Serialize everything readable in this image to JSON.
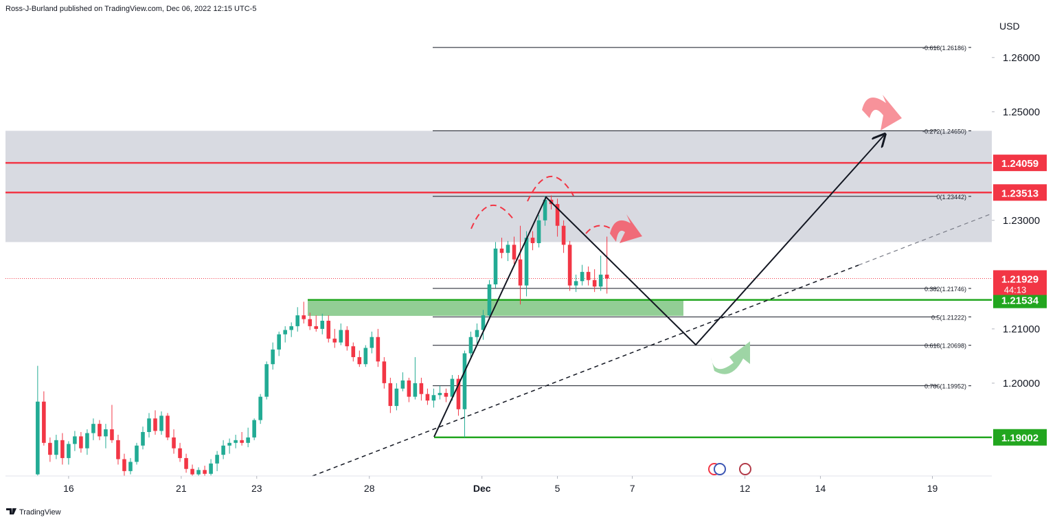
{
  "chart_data": {
    "type": "candlestick",
    "header": "Ross-J-Burland published on TradingView.com, Dec 06, 2022 12:15 UTC-5",
    "footer": "TradingView",
    "currency": "USD",
    "up_color": "#22ab94",
    "down_color": "#f23645",
    "open": [
      1.1832,
      1.1966,
      1.189,
      1.1868,
      1.1895,
      1.1862,
      1.1888,
      1.1902,
      1.188,
      1.1908,
      1.1925,
      1.1902,
      1.1915,
      1.1895,
      1.186,
      1.1838,
      1.1855,
      1.1885,
      1.191,
      1.1935,
      1.1912,
      1.194,
      1.19,
      1.188,
      1.1862,
      1.1842,
      1.1832,
      1.184,
      1.1833,
      1.1852,
      1.1868,
      1.1885,
      1.189,
      1.1895,
      1.189,
      1.19,
      1.1932,
      1.1975,
      1.2035,
      1.2062,
      1.209,
      1.2098,
      1.2105,
      1.2125,
      1.2118,
      1.2105,
      1.21,
      1.2115,
      1.2082,
      1.2075,
      1.2098,
      1.2068,
      1.2048,
      1.2035,
      1.2065,
      1.2085,
      1.204,
      1.2,
      1.1958,
      1.199,
      1.2005,
      1.1975,
      1.2,
      1.198,
      1.1968,
      1.1978,
      1.1982,
      1.1975,
      1.2008,
      1.1952,
      1.2055,
      1.2085,
      1.2098,
      1.2125,
      1.2182,
      1.2248,
      1.224,
      1.2255,
      1.2228,
      1.218,
      1.2268,
      1.2258,
      1.23,
      1.2338,
      1.233,
      1.229,
      1.2255,
      1.218,
      1.2188,
      1.2205,
      1.219,
      1.2178,
      1.22
    ],
    "high": [
      1.2032,
      1.1985,
      1.19,
      1.1905,
      1.1908,
      1.1893,
      1.1912,
      1.191,
      1.1915,
      1.1935,
      1.1932,
      1.1925,
      1.196,
      1.1905,
      1.187,
      1.1862,
      1.189,
      1.192,
      1.1945,
      1.195,
      1.1948,
      1.1945,
      1.1915,
      1.189,
      1.187,
      1.185,
      1.1845,
      1.1848,
      1.186,
      1.1875,
      1.1895,
      1.1898,
      1.1905,
      1.191,
      1.1918,
      1.1935,
      1.198,
      1.204,
      1.2075,
      1.2095,
      1.2105,
      1.2112,
      1.214,
      1.215,
      1.213,
      1.2125,
      1.2128,
      1.2125,
      1.21,
      1.211,
      1.2105,
      1.2075,
      1.206,
      1.207,
      1.2095,
      1.21,
      1.2048,
      1.201,
      1.2,
      1.202,
      1.201,
      1.2048,
      1.201,
      1.199,
      1.199,
      1.1995,
      1.199,
      1.2015,
      1.2015,
      1.206,
      1.2095,
      1.211,
      1.2135,
      1.219,
      1.226,
      1.2268,
      1.2262,
      1.227,
      1.229,
      1.228,
      1.228,
      1.231,
      1.2345,
      1.2346,
      1.234,
      1.23,
      1.2262,
      1.22,
      1.2218,
      1.2215,
      1.221,
      1.2235,
      1.227
    ],
    "low": [
      1.183,
      1.1885,
      1.1855,
      1.186,
      1.185,
      1.185,
      1.1875,
      1.1872,
      1.1868,
      1.1895,
      1.1895,
      1.188,
      1.189,
      1.185,
      1.1829,
      1.1832,
      1.185,
      1.1878,
      1.19,
      1.1905,
      1.1905,
      1.1895,
      1.187,
      1.1855,
      1.1835,
      1.1829,
      1.1829,
      1.1829,
      1.183,
      1.1838,
      1.186,
      1.187,
      1.188,
      1.1885,
      1.1882,
      1.1895,
      1.1925,
      1.197,
      1.2025,
      1.205,
      1.2075,
      1.2085,
      1.2095,
      1.211,
      1.2098,
      1.2095,
      1.209,
      1.2075,
      1.2065,
      1.207,
      1.206,
      1.204,
      1.203,
      1.203,
      1.2055,
      1.203,
      1.199,
      1.1945,
      1.195,
      1.1985,
      1.1965,
      1.197,
      1.1968,
      1.196,
      1.1955,
      1.197,
      1.1965,
      1.1968,
      1.194,
      1.19,
      1.2045,
      1.207,
      1.208,
      1.2118,
      1.2175,
      1.223,
      1.2225,
      1.222,
      1.2145,
      1.216,
      1.2245,
      1.225,
      1.229,
      1.232,
      1.227,
      1.224,
      1.217,
      1.2168,
      1.218,
      1.218,
      1.2168,
      1.217,
      1.2165
    ],
    "close": [
      1.1966,
      1.189,
      1.1868,
      1.1895,
      1.1862,
      1.1888,
      1.1902,
      1.188,
      1.1908,
      1.1925,
      1.1902,
      1.1915,
      1.1895,
      1.186,
      1.1838,
      1.1855,
      1.1885,
      1.191,
      1.1935,
      1.1912,
      1.194,
      1.19,
      1.188,
      1.1862,
      1.1842,
      1.1832,
      1.184,
      1.1833,
      1.1852,
      1.1868,
      1.1885,
      1.189,
      1.1895,
      1.189,
      1.19,
      1.1932,
      1.1975,
      1.2035,
      1.2062,
      1.209,
      1.2098,
      1.2105,
      1.2125,
      1.2118,
      1.2105,
      1.21,
      1.2115,
      1.2082,
      1.2075,
      1.2098,
      1.2068,
      1.2048,
      1.2035,
      1.2065,
      1.2085,
      1.204,
      1.2,
      1.1958,
      1.199,
      1.2005,
      1.1975,
      1.2,
      1.198,
      1.1968,
      1.1978,
      1.1982,
      1.1975,
      1.2008,
      1.1952,
      1.2055,
      1.2085,
      1.2098,
      1.2125,
      1.2182,
      1.2248,
      1.224,
      1.2255,
      1.2228,
      1.218,
      1.2268,
      1.2258,
      1.23,
      1.2338,
      1.233,
      1.229,
      1.2255,
      1.218,
      1.2188,
      1.2205,
      1.219,
      1.2178,
      1.22,
      1.21929
    ],
    "xlim": [
      -5.2,
      154.2
    ],
    "xticks": [
      {
        "value": 5.0,
        "label": "16"
      },
      {
        "value": 23.2,
        "label": "21"
      },
      {
        "value": 35.4,
        "label": "23"
      },
      {
        "value": 53.6,
        "label": "28"
      },
      {
        "value": 71.8,
        "label": "Dec"
      },
      {
        "value": 84.0,
        "label": "5"
      },
      {
        "value": 96.1,
        "label": "7"
      },
      {
        "value": 114.3,
        "label": "12"
      },
      {
        "value": 126.5,
        "label": "14"
      },
      {
        "value": 144.6,
        "label": "19"
      }
    ],
    "ylim": [
      1.1829,
      1.2706
    ],
    "yticks": [
      {
        "value": 1.26,
        "label": "1.26000"
      },
      {
        "value": 1.25,
        "label": "1.25000"
      },
      {
        "value": 1.23,
        "label": "1.23000"
      },
      {
        "value": 1.21,
        "label": "1.21000"
      },
      {
        "value": 1.2,
        "label": "1.20000"
      }
    ],
    "zones": [
      {
        "from": 1.226,
        "to": 1.2465,
        "color": "#d1d4dc"
      },
      {
        "from": 1.2124,
        "to": 1.21534,
        "color": "#7fc583"
      }
    ],
    "levels": [
      {
        "value": 1.24059,
        "color": "#f23645"
      },
      {
        "value": 1.23513,
        "color": "#f23645"
      },
      {
        "value": 1.21534,
        "color": "#22a61f"
      },
      {
        "value": 1.19002,
        "color": "#22a61f"
      }
    ],
    "current_price": {
      "value": 1.21929,
      "countdown": "44:13",
      "color": "#f23645"
    },
    "fib_levels": [
      {
        "value": 1.26186,
        "label": "-0.618(1.26186)"
      },
      {
        "value": 1.2465,
        "label": "-0.272(1.24650)"
      },
      {
        "value": 1.23442,
        "label": "0(1.23442)"
      },
      {
        "value": 1.21746,
        "label": "0.382(1.21746)"
      },
      {
        "value": 1.21222,
        "label": "0.5(1.21222)"
      },
      {
        "value": 1.20698,
        "label": "0.618(1.20698)"
      },
      {
        "value": 1.19952,
        "label": "0.786(1.19952)"
      }
    ]
  }
}
